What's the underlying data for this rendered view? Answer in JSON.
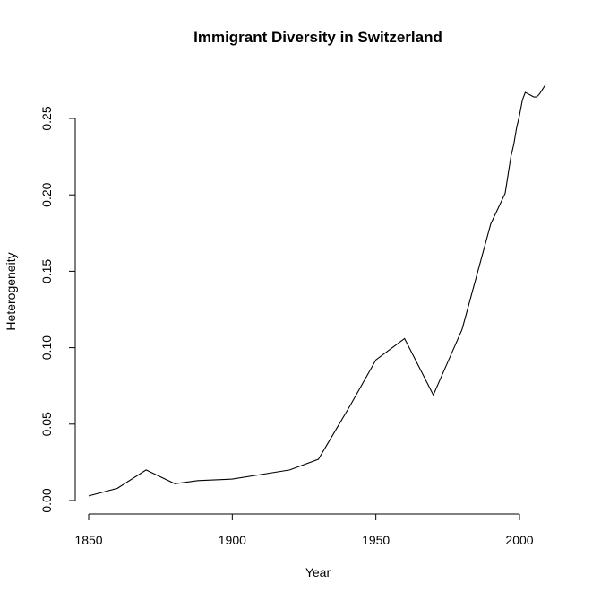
{
  "chart_data": {
    "type": "line",
    "title": "Immigrant Diversity in Switzerland",
    "xlabel": "Year",
    "ylabel": "Heterogeneity",
    "xlim": [
      1850,
      2010
    ],
    "ylim": [
      0,
      0.27
    ],
    "xticks": [
      1850,
      1900,
      1950,
      2000
    ],
    "xtick_labels": [
      "1850",
      "1900",
      "1950",
      "2000"
    ],
    "yticks": [
      0,
      0.05,
      0.1,
      0.15,
      0.2,
      0.25
    ],
    "ytick_labels": [
      "0.00",
      "0.05",
      "0.10",
      "0.15",
      "0.20",
      "0.25"
    ],
    "grid": false,
    "series": [
      {
        "name": "Heterogeneity",
        "color": "#000000",
        "x": [
          1850,
          1860,
          1870,
          1880,
          1888,
          1900,
          1910,
          1920,
          1930,
          1941,
          1950,
          1960,
          1970,
          1980,
          1990,
          1995,
          1996,
          1997,
          1998,
          1999,
          2000,
          2001,
          2002,
          2003,
          2004,
          2005,
          2006,
          2007,
          2008,
          2009
        ],
        "y": [
          0.003,
          0.008,
          0.02,
          0.011,
          0.013,
          0.014,
          0.017,
          0.02,
          0.027,
          0.062,
          0.092,
          0.106,
          0.069,
          0.112,
          0.181,
          0.201,
          0.213,
          0.225,
          0.233,
          0.244,
          0.252,
          0.262,
          0.267,
          0.266,
          0.265,
          0.264,
          0.264,
          0.266,
          0.269,
          0.272
        ]
      }
    ]
  }
}
